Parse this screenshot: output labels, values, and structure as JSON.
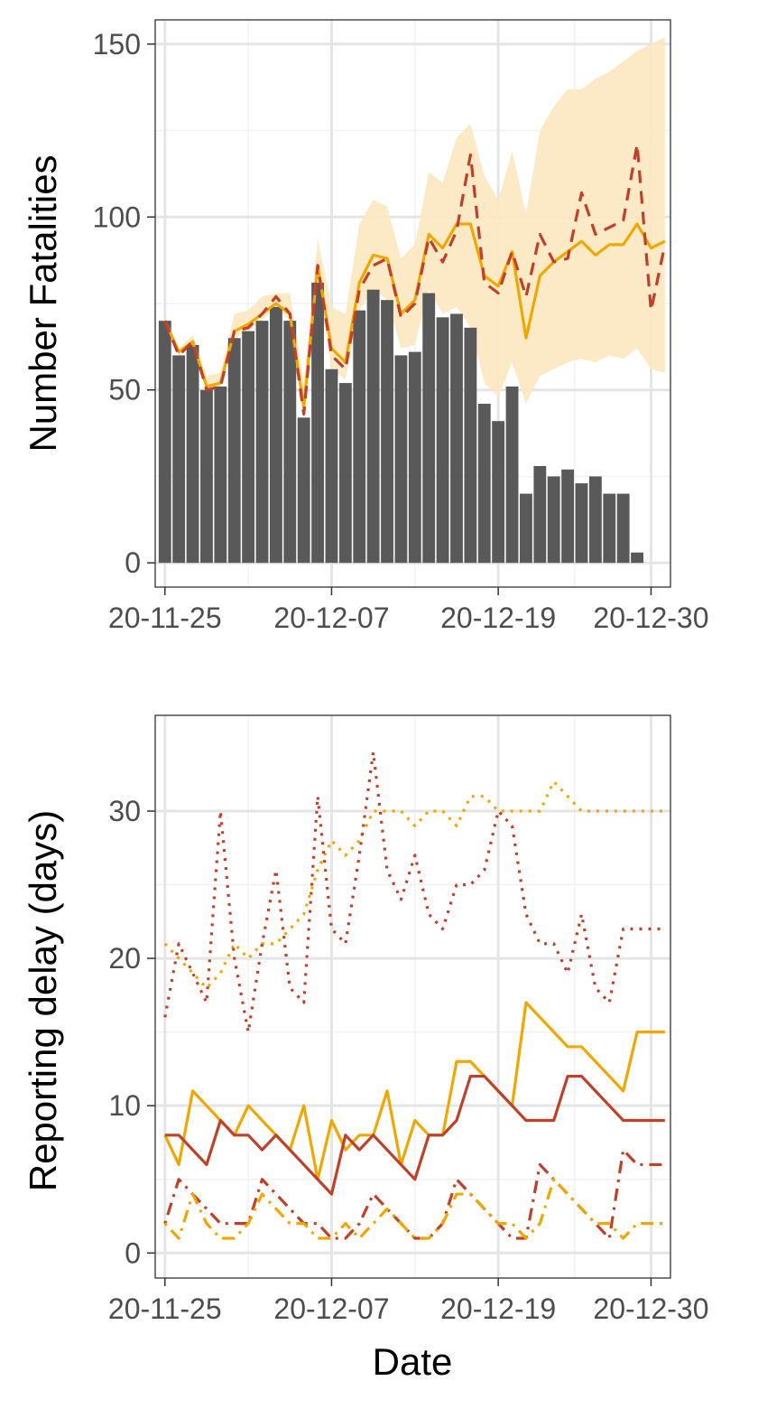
{
  "colors": {
    "bars": "#595959",
    "orange": "#F0A800",
    "red": "#C0402A",
    "ribbon": "#FCE8C0",
    "grid_major": "#E5E5E5",
    "grid_minor": "#F2F2F2",
    "axis_text": "#4D4D4D"
  },
  "chart_data": [
    {
      "type": "bar",
      "ylabel": "Number Fatalities",
      "xlabel": "",
      "ylim": [
        -7,
        157
      ],
      "yticks": [
        0,
        50,
        100,
        150
      ],
      "xtick_labels": [
        {
          "day": 0,
          "label": "20-11-25"
        },
        {
          "day": 12,
          "label": "20-12-07"
        },
        {
          "day": 24,
          "label": "20-12-19"
        },
        {
          "day": 35,
          "label": "20-12-30"
        }
      ],
      "bars": [
        70,
        60,
        63,
        50,
        51,
        65,
        67,
        70,
        74,
        70,
        42,
        81,
        56,
        52,
        73,
        79,
        76,
        60,
        61,
        78,
        71,
        72,
        68,
        46,
        41,
        51,
        20,
        28,
        25,
        27,
        23,
        25,
        20,
        20,
        3
      ],
      "series": [
        {
          "line": "solid",
          "values": [
            70,
            61,
            64,
            51,
            52,
            67,
            69,
            72,
            75,
            72,
            45,
            86,
            62,
            58,
            81,
            89,
            88,
            72,
            76,
            95,
            91,
            98,
            98,
            83,
            80,
            90,
            65,
            83,
            87,
            90,
            93,
            89,
            92,
            92,
            98,
            91,
            93
          ]
        },
        {
          "line": "dashed",
          "values": [
            70,
            60,
            64,
            50,
            51,
            67,
            68,
            72,
            77,
            72,
            43,
            86,
            60,
            56,
            79,
            86,
            88,
            71,
            75,
            94,
            87,
            96,
            118,
            81,
            78,
            90,
            77,
            95,
            87,
            88,
            107,
            95,
            97,
            99,
            121,
            73,
            92
          ]
        }
      ],
      "band": {
        "lower": [
          70,
          60,
          63,
          50,
          51,
          65,
          67,
          70,
          74,
          70,
          42,
          81,
          56,
          53,
          73,
          79,
          76,
          62,
          63,
          79,
          72,
          74,
          68,
          52,
          48,
          58,
          46,
          54,
          56,
          58,
          59,
          58,
          60,
          59,
          62,
          56,
          55
        ],
        "upper": [
          71,
          62,
          66,
          54,
          55,
          72,
          73,
          77,
          78,
          78,
          52,
          94,
          74,
          72,
          98,
          105,
          103,
          88,
          92,
          113,
          110,
          123,
          127,
          112,
          105,
          119,
          101,
          125,
          132,
          137,
          137,
          140,
          142,
          145,
          148,
          150,
          152
        ]
      }
    },
    {
      "type": "line",
      "ylabel": "Reporting delay (days)",
      "xlabel": "Date",
      "ylim": [
        -1.7,
        36.5
      ],
      "yticks": [
        0,
        10,
        20,
        30
      ],
      "xtick_labels": [
        {
          "day": 0,
          "label": "20-11-25"
        },
        {
          "day": 12,
          "label": "20-12-07"
        },
        {
          "day": 24,
          "label": "20-12-19"
        },
        {
          "day": 35,
          "label": "20-12-30"
        }
      ],
      "series": [
        {
          "color": "orange",
          "line": "dotted",
          "values": [
            21,
            20,
            19,
            18,
            19,
            21,
            20,
            21,
            21,
            22,
            23,
            26,
            28,
            27,
            28,
            30,
            30,
            30,
            29,
            30,
            30,
            29,
            31,
            31,
            30,
            30,
            30,
            30,
            32,
            31,
            30,
            30,
            30,
            30,
            30,
            30,
            30
          ]
        },
        {
          "color": "red",
          "line": "dotted",
          "values": [
            16,
            21,
            19,
            17,
            30,
            20,
            15,
            21,
            26,
            18,
            17,
            31,
            22,
            21,
            27,
            34,
            26,
            24,
            27,
            23,
            22,
            25,
            25,
            26,
            30,
            29,
            23,
            21,
            21,
            19,
            23,
            18,
            17,
            22,
            22,
            22,
            22
          ]
        },
        {
          "color": "orange",
          "line": "solid",
          "values": [
            8,
            6,
            11,
            10,
            9,
            8,
            10,
            9,
            8,
            7,
            10,
            5,
            9,
            7,
            8,
            8,
            11,
            6,
            9,
            8,
            8,
            13,
            13,
            12,
            11,
            10,
            17,
            16,
            15,
            14,
            14,
            13,
            12,
            11,
            15,
            15,
            15
          ]
        },
        {
          "color": "red",
          "line": "solid",
          "values": [
            8,
            8,
            7,
            6,
            9,
            8,
            8,
            7,
            8,
            7,
            6,
            5,
            4,
            8,
            7,
            8,
            7,
            6,
            5,
            8,
            8,
            9,
            12,
            12,
            11,
            10,
            9,
            9,
            9,
            12,
            12,
            11,
            10,
            9,
            9,
            9,
            9
          ]
        },
        {
          "color": "red",
          "line": "dotdash",
          "values": [
            2,
            5,
            4,
            3,
            2,
            2,
            2,
            5,
            4,
            3,
            2,
            2,
            1,
            1,
            2,
            4,
            3,
            2,
            1,
            1,
            2,
            5,
            4,
            3,
            2,
            1,
            1,
            6,
            5,
            4,
            3,
            2,
            1,
            7,
            6,
            6,
            6
          ]
        },
        {
          "color": "orange",
          "line": "dotdash",
          "values": [
            2,
            1,
            4,
            2,
            1,
            1,
            2,
            4,
            3,
            2,
            2,
            1,
            1,
            2,
            1,
            2,
            3,
            2,
            1,
            1,
            2,
            4,
            4,
            3,
            2,
            2,
            1,
            2,
            5,
            4,
            3,
            2,
            2,
            1,
            2,
            2,
            2
          ]
        }
      ]
    }
  ]
}
